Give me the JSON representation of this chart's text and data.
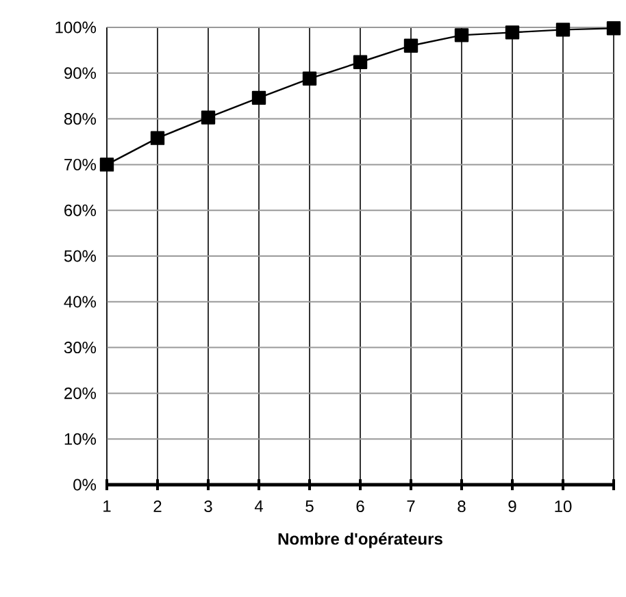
{
  "chart_data": {
    "type": "line",
    "xlabel": "Nombre d'opérateurs",
    "categories": [
      "1",
      "2",
      "3",
      "4",
      "5",
      "6",
      "7",
      "8",
      "9",
      "10",
      null
    ],
    "values": [
      70,
      75.8,
      80.3,
      84.6,
      88.8,
      92.4,
      96,
      98.3,
      98.9,
      99.5,
      99.8
    ],
    "color": "#000000",
    "marker": "square",
    "line_style": "solid",
    "grid": true,
    "ylim": [
      0,
      100
    ],
    "yticks": [
      {
        "value": 0,
        "label": "0%"
      },
      {
        "value": 10,
        "label": "10%"
      },
      {
        "value": 20,
        "label": "20%"
      },
      {
        "value": 30,
        "label": "30%"
      },
      {
        "value": 40,
        "label": "40%"
      },
      {
        "value": 50,
        "label": "50%"
      },
      {
        "value": 60,
        "label": "60%"
      },
      {
        "value": 70,
        "label": "70%"
      },
      {
        "value": 80,
        "label": "80%"
      },
      {
        "value": 90,
        "label": "90%"
      },
      {
        "value": 100,
        "label": "100%"
      }
    ]
  }
}
